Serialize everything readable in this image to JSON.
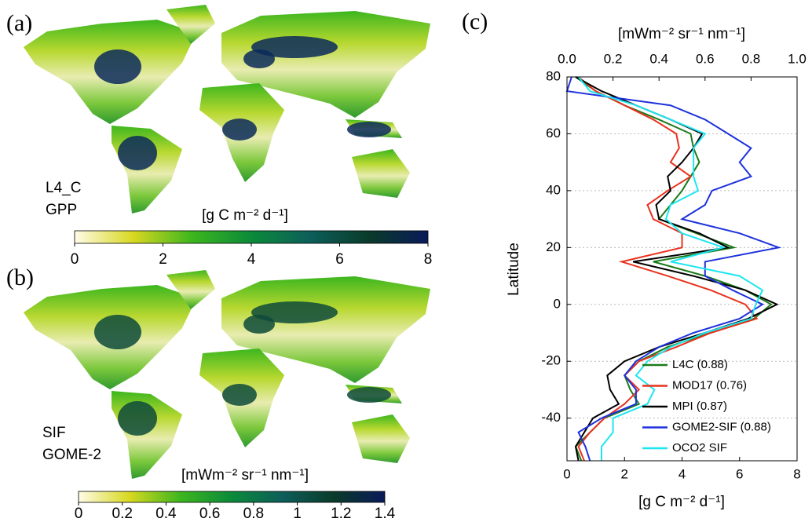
{
  "maps": [
    {
      "panel": "(a)",
      "name_lines": [
        "L4_C",
        "GPP"
      ],
      "colorbar_label": "[g C m⁻² d⁻¹]",
      "colorbar_lim": [
        0,
        8
      ],
      "colorbar_ticks": [
        0,
        2,
        4,
        6,
        8
      ],
      "colormap": [
        "#fffbe8",
        "#d8d820",
        "#3cb61e",
        "#0b8a3a",
        "#0d5e5a",
        "#0a3b2a",
        "#0a1a5a"
      ]
    },
    {
      "panel": "(b)",
      "name_lines": [
        "SIF",
        "GOME-2"
      ],
      "colorbar_label": "[mWm⁻² sr⁻¹ nm⁻¹]",
      "colorbar_lim": [
        0,
        1.4
      ],
      "colorbar_ticks": [
        0,
        0.2,
        0.4,
        0.6,
        0.8,
        1,
        1.2,
        1.4
      ],
      "colormap": [
        "#fffbe8",
        "#d8d820",
        "#3cb61e",
        "#0b8a3a",
        "#0d5e5a",
        "#0a3b2a",
        "#0a1a5a"
      ]
    }
  ],
  "chart_data": {
    "type": "line",
    "panel": "(c)",
    "y_label": "Latitude",
    "x_label": "[g C m⁻² d⁻¹]",
    "x2_label": "[mWm⁻² sr⁻¹ nm⁻¹]",
    "y": [
      80,
      75,
      70,
      65,
      60,
      55,
      50,
      45,
      40,
      35,
      30,
      25,
      20,
      15,
      10,
      5,
      0,
      -5,
      -10,
      -15,
      -20,
      -25,
      -30,
      -35,
      -40,
      -45,
      -50,
      -55
    ],
    "ylim": [
      -55,
      80
    ],
    "yticks": [
      -40,
      -20,
      0,
      20,
      40,
      60,
      80
    ],
    "xlim": [
      0,
      8
    ],
    "xticks": [
      0,
      2,
      4,
      6,
      8
    ],
    "x2lim": [
      0,
      1
    ],
    "x2ticks": [
      {
        "value": 0,
        "label": "0.0"
      },
      0.2,
      0.4,
      0.6,
      0.8,
      {
        "value": 1,
        "label": "1.0"
      }
    ],
    "grid": true,
    "legend": "lower-center",
    "series": [
      {
        "name": "L4C (0.88)",
        "color": "#1a7a1a",
        "values": [
          0.3,
          1.0,
          2.0,
          3.2,
          4.3,
          4.4,
          4.6,
          4.3,
          4.0,
          3.6,
          3.2,
          4.5,
          5.8,
          3.0,
          4.8,
          6.2,
          7.1,
          6.5,
          5.0,
          3.5,
          2.5,
          2.0,
          2.2,
          2.5,
          1.3,
          0.8,
          0.3,
          0.5
        ]
      },
      {
        "name": "MOD17 (0.76)",
        "color": "#e8321e",
        "values": [
          0.4,
          1.0,
          2.0,
          3.0,
          3.8,
          3.9,
          3.6,
          4.3,
          3.5,
          2.8,
          3.0,
          4.0,
          4.0,
          1.9,
          3.5,
          5.0,
          6.2,
          6.6,
          5.0,
          3.8,
          2.5,
          2.0,
          2.5,
          2.0,
          1.3,
          0.8,
          0.4,
          0.6
        ]
      },
      {
        "name": "MPI (0.87)",
        "color": "#000000",
        "values": [
          0.3,
          1.2,
          2.4,
          3.6,
          4.7,
          4.4,
          4.0,
          3.5,
          3.6,
          3.1,
          3.2,
          4.6,
          5.6,
          2.3,
          4.4,
          6.2,
          7.3,
          6.3,
          4.8,
          3.2,
          2.0,
          1.4,
          1.5,
          1.8,
          0.9,
          0.6,
          0.3,
          0.4
        ]
      },
      {
        "name": "GOME2-SIF (0.88)",
        "color": "#1e32dc",
        "axis": "x2",
        "values": [
          0.02,
          0.0,
          0.45,
          0.6,
          0.7,
          0.8,
          0.75,
          0.8,
          0.63,
          0.6,
          0.5,
          0.75,
          0.92,
          0.6,
          0.6,
          0.72,
          0.85,
          0.75,
          0.55,
          0.4,
          0.3,
          0.25,
          0.3,
          0.3,
          0.15,
          0.05,
          0.08,
          0.1
        ]
      },
      {
        "name": "OCO2 SIF",
        "color": "#1ee6f0",
        "axis": "x2",
        "values": [
          0.05,
          0.1,
          0.3,
          0.45,
          0.6,
          0.55,
          0.55,
          0.55,
          0.57,
          0.45,
          0.43,
          0.5,
          0.68,
          0.45,
          0.75,
          0.85,
          0.82,
          0.8,
          0.6,
          0.45,
          0.35,
          0.3,
          0.38,
          0.35,
          0.2,
          0.2,
          0.15,
          0.15
        ]
      }
    ]
  }
}
